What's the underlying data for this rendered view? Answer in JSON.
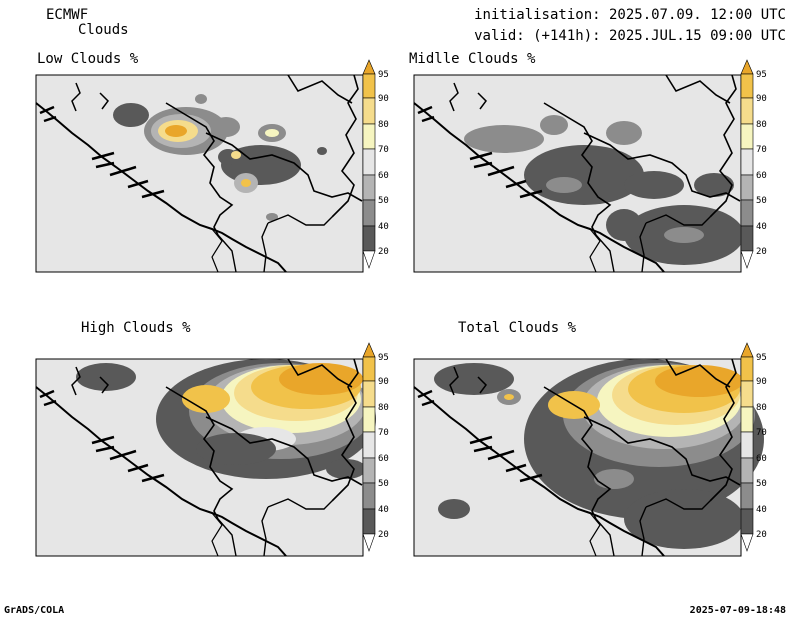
{
  "header": {
    "model": "ECMWF",
    "product": "Clouds",
    "init": "initialisation: 2025.07.09. 12:00 UTC",
    "valid": "valid: (+141h): 2025.JUL.15 09:00 UTC"
  },
  "panels": [
    {
      "id": "low",
      "title": "Low Clouds %"
    },
    {
      "id": "mid",
      "title": "Midlle Clouds %"
    },
    {
      "id": "high",
      "title": "High Clouds %"
    },
    {
      "id": "total",
      "title": "Total Clouds %"
    }
  ],
  "colorbar": {
    "levels": [
      "95",
      "90",
      "80",
      "70",
      "60",
      "50",
      "40",
      "20"
    ],
    "colors": [
      "#e9a62a",
      "#f1c24a",
      "#f5dc8c",
      "#f6f5c0",
      "#e6e6e6",
      "#b4b4b4",
      "#8c8c8c",
      "#595959",
      "#ffffff"
    ]
  },
  "footer": {
    "left": "GrADS/COLA",
    "right": "2025-07-09-18:48"
  },
  "colors": {
    "background_field": "#e6e6e6",
    "coastline": "#000000",
    "borders": "#000000"
  }
}
